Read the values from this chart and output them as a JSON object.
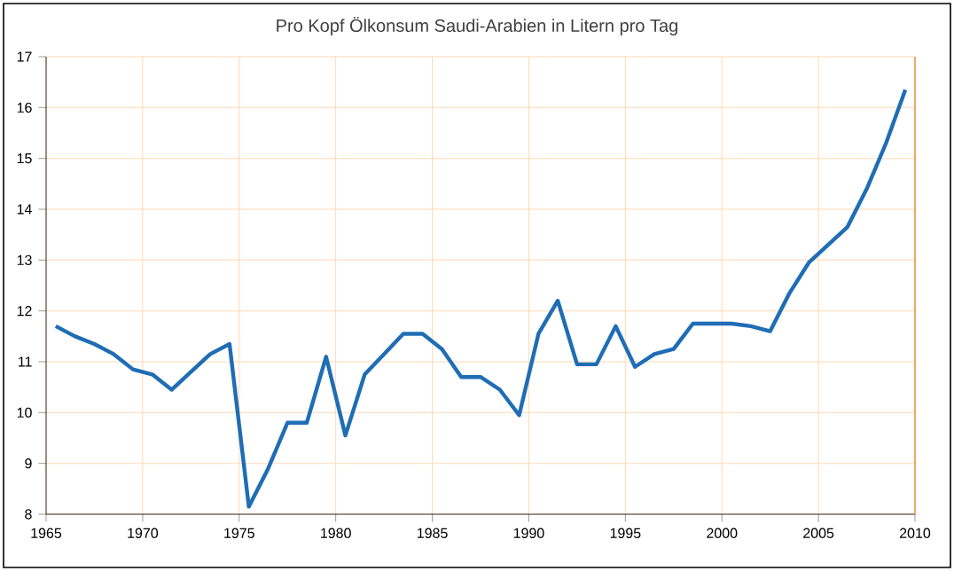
{
  "chart_data": {
    "type": "line",
    "title": "Pro Kopf Ölkonsum Saudi-Arabien in Litern pro Tag",
    "x": [
      1965.5,
      1966.5,
      1967.5,
      1968.5,
      1969.5,
      1970.5,
      1971.5,
      1972.5,
      1973.5,
      1974.5,
      1975.5,
      1976.5,
      1977.5,
      1978.5,
      1979.5,
      1980.5,
      1981.5,
      1982.5,
      1983.5,
      1984.5,
      1985.5,
      1986.5,
      1987.5,
      1988.5,
      1989.5,
      1990.5,
      1991.5,
      1992.5,
      1993.5,
      1994.5,
      1995.5,
      1996.5,
      1997.5,
      1998.5,
      1999.5,
      2000.5,
      2001.5,
      2002.5,
      2003.5,
      2004.5,
      2005.5,
      2006.5,
      2007.5,
      2008.5,
      2009.5
    ],
    "series": [
      {
        "color": "#1f6db5",
        "values": [
          11.7,
          11.5,
          11.35,
          11.15,
          10.85,
          10.75,
          10.45,
          10.8,
          11.15,
          11.35,
          8.15,
          8.9,
          9.8,
          9.8,
          11.1,
          9.55,
          10.75,
          11.15,
          11.55,
          11.55,
          11.25,
          10.7,
          10.7,
          10.45,
          9.95,
          11.55,
          12.2,
          10.95,
          10.95,
          11.7,
          10.9,
          11.15,
          11.25,
          11.75,
          11.75,
          11.75,
          11.7,
          11.6,
          12.35,
          12.95,
          13.3,
          13.65,
          14.4,
          15.3,
          16.35
        ]
      }
    ],
    "xlim": [
      1965,
      2010
    ],
    "ylim": [
      8,
      17
    ],
    "xticks": [
      1965,
      1970,
      1975,
      1980,
      1985,
      1990,
      1995,
      2000,
      2005,
      2010
    ],
    "yticks": [
      8,
      9,
      10,
      11,
      12,
      13,
      14,
      15,
      16,
      17
    ],
    "grid": true,
    "marker": "none",
    "line_style": "solid"
  }
}
